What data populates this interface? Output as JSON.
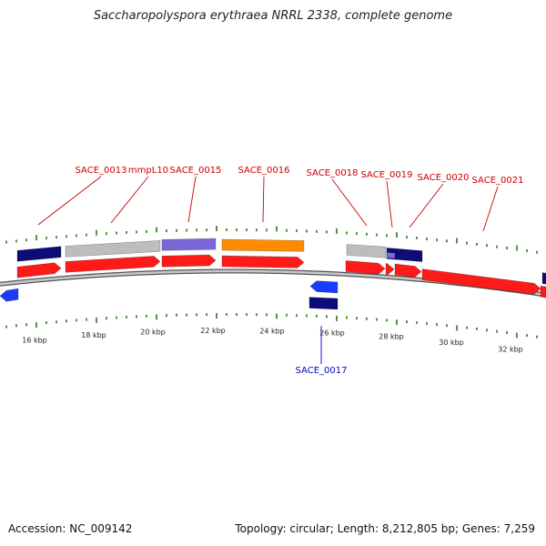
{
  "title": "Saccharopolyspora erythraea NRRL 2338, complete genome",
  "footer": {
    "accession": "Accession: NC_009142",
    "summary": "Topology: circular; Length: 8,212,805 bp; Genes: 7,259"
  },
  "colors": {
    "forward_label": "#cc0000",
    "reverse_label": "#0000cc",
    "tick": "#2a7a1a",
    "backbone": "#888888",
    "forward_cds": "#ff1a1a",
    "reverse_cds": "#1a3cff",
    "navy": "#0d0d7a",
    "grey": "#bdbdbd",
    "purple": "#7b68d8",
    "orange": "#ff8c00"
  },
  "scale": {
    "unit": "kbp",
    "labels": [
      "16 kbp",
      "18 kbp",
      "20 kbp",
      "22 kbp",
      "24 kbp",
      "26 kbp",
      "28 kbp",
      "30 kbp",
      "32 kbp"
    ]
  },
  "gene_labels": [
    {
      "name": "SACE_0013",
      "strand": "forward"
    },
    {
      "name": "mmpL10",
      "strand": "forward"
    },
    {
      "name": "SACE_0015",
      "strand": "forward"
    },
    {
      "name": "SACE_0016",
      "strand": "forward"
    },
    {
      "name": "SACE_0018",
      "strand": "forward"
    },
    {
      "name": "SACE_0019",
      "strand": "forward"
    },
    {
      "name": "SACE_0020",
      "strand": "forward"
    },
    {
      "name": "SACE_0021",
      "strand": "forward"
    },
    {
      "name": "SACE_0017",
      "strand": "reverse"
    }
  ]
}
